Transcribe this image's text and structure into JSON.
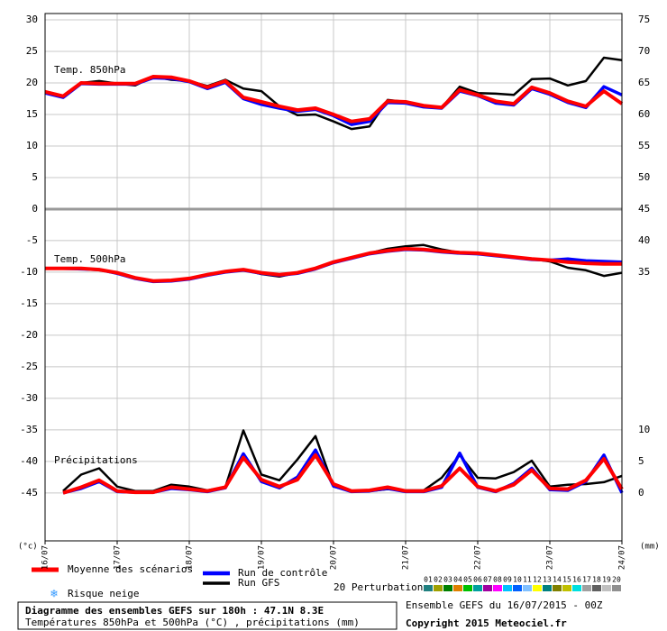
{
  "chart_data": {
    "type": "line",
    "title": "Diagramme des ensembles GEFS sur 180h : 47.1N 8.3E",
    "subtitle": "Températures 850hPa et 500hPa (°C) , précipitations (mm)",
    "run_info": "Ensemble GEFS du 16/07/2015 - 00Z",
    "copyright": "Copyright 2015 Meteociel.fr",
    "y_label": "(°c)",
    "y2_label": "(mm)",
    "annotations": [
      "Temp. 850hPa",
      "Temp. 500hPa",
      "Précipitations"
    ],
    "snow_label": "Risque neige",
    "categories": [
      "16/07",
      null,
      null,
      null,
      "17/07",
      null,
      null,
      null,
      "18/07",
      null,
      null,
      null,
      "19/07",
      null,
      null,
      null,
      "20/07",
      null,
      null,
      null,
      "21/07",
      null,
      null,
      null,
      "22/07",
      null,
      null,
      null,
      "23/07",
      null,
      null,
      null,
      "24/07"
    ],
    "ylim": [
      -52.6,
      31
    ],
    "yticks": [
      -45,
      -40,
      -35,
      -30,
      -25,
      -20,
      -15,
      -10,
      -5,
      0,
      5,
      10,
      15,
      20,
      25,
      30
    ],
    "y2lim": [
      -7.6,
      76
    ],
    "y2ticks": [
      0,
      5,
      10,
      35,
      40,
      45,
      50,
      55,
      60,
      65,
      70,
      75
    ],
    "grid": true,
    "series": [
      {
        "name": "Run GFS",
        "color": "#000000",
        "values": [
          18.6,
          17.9,
          20,
          20.3,
          19.9,
          19.6,
          21,
          20.5,
          20.3,
          19.5,
          20.5,
          19.1,
          18.7,
          16.3,
          14.9,
          15,
          13.9,
          12.7,
          13.1,
          17.3,
          17,
          16.4,
          16.1,
          19.4,
          18.4,
          18.3,
          18.1,
          20.6,
          20.7,
          19.6,
          20.3,
          24,
          23.6
        ],
        "values_500": [
          -9.4,
          -9.4,
          -9.4,
          -9.6,
          -10.1,
          -10.9,
          -11.4,
          -11.3,
          -11,
          -10.4,
          -9.9,
          -9.6,
          -10.3,
          -10.7,
          -10.1,
          -9.4,
          -8.4,
          -7.7,
          -7,
          -6.3,
          -5.9,
          -5.7,
          -6.4,
          -6.9,
          -7,
          -7.3,
          -7.6,
          -7.9,
          -8.3,
          -9.3,
          -9.7,
          -10.6,
          -10.1
        ],
        "precip": [
          null,
          0.3,
          2.9,
          3.9,
          1,
          0.3,
          0.3,
          1.3,
          1,
          0.4,
          0.9,
          9.9,
          2.9,
          2,
          5.3,
          9,
          1,
          0.3,
          0.3,
          0.6,
          0.4,
          0.4,
          2.4,
          6,
          2.4,
          2.3,
          3.3,
          5.1,
          1,
          1.3,
          1.4,
          1.7,
          2.7
        ]
      },
      {
        "name": "Run de contrôle",
        "color": "#0000ff",
        "values": [
          18.4,
          17.7,
          19.9,
          19.8,
          19.8,
          19.8,
          20.8,
          20.7,
          20.2,
          19.1,
          20.1,
          17.5,
          16.6,
          16,
          15.5,
          15.8,
          14.8,
          13.4,
          13.9,
          16.9,
          16.8,
          16.2,
          16,
          18.7,
          18,
          16.8,
          16.5,
          19.1,
          18.2,
          16.9,
          16.1,
          19.4,
          18.1
        ],
        "values_500": [
          -9.4,
          -9.4,
          -9.5,
          -9.6,
          -10.2,
          -11,
          -11.5,
          -11.4,
          -11.1,
          -10.5,
          -10,
          -9.7,
          -10.2,
          -10.5,
          -10.2,
          -9.5,
          -8.5,
          -7.8,
          -7.1,
          -6.7,
          -6.4,
          -6.5,
          -6.8,
          -7,
          -7.1,
          -7.4,
          -7.7,
          -8,
          -8.1,
          -7.9,
          -8.2,
          -8.3,
          -8.4
        ],
        "precip": [
          null,
          0,
          0.7,
          1.8,
          0.2,
          0.1,
          0.1,
          0.7,
          0.5,
          0.2,
          0.8,
          6.2,
          1.8,
          0.8,
          2.5,
          6.8,
          1.1,
          0.2,
          0.3,
          0.7,
          0.2,
          0.2,
          0.9,
          6.3,
          0.9,
          0.2,
          1.5,
          3.9,
          0.5,
          0.4,
          1.8,
          6,
          0
        ]
      },
      {
        "name": "Moyenne des scénarios",
        "color": "#ff0000",
        "values": [
          18.6,
          17.9,
          20,
          19.9,
          19.9,
          19.9,
          21,
          20.9,
          20.3,
          19.3,
          20.3,
          17.7,
          17,
          16.3,
          15.7,
          16,
          15,
          13.9,
          14.3,
          17.1,
          17,
          16.4,
          16.1,
          18.9,
          18.1,
          17.1,
          16.7,
          19.3,
          18.4,
          17.1,
          16.3,
          18.7,
          16.7
        ],
        "values_500": [
          -9.4,
          -9.4,
          -9.4,
          -9.6,
          -10.1,
          -10.9,
          -11.4,
          -11.3,
          -11,
          -10.4,
          -9.9,
          -9.6,
          -10.1,
          -10.4,
          -10.1,
          -9.4,
          -8.4,
          -7.7,
          -7,
          -6.6,
          -6.3,
          -6.4,
          -6.7,
          -6.9,
          -7,
          -7.3,
          -7.6,
          -7.9,
          -8.1,
          -8.4,
          -8.6,
          -8.7,
          -8.7
        ],
        "precip": [
          null,
          0,
          0.9,
          2,
          0.3,
          0.1,
          0.1,
          0.9,
          0.6,
          0.3,
          0.9,
          5.6,
          2.1,
          1,
          2.1,
          6,
          1.4,
          0.3,
          0.4,
          0.9,
          0.3,
          0.3,
          1.1,
          3.9,
          1,
          0.3,
          1.3,
          3.6,
          0.7,
          0.6,
          2,
          5.4,
          0.6
        ]
      }
    ],
    "perturbations": {
      "label": "20 Perturbations",
      "members": [
        {
          "name": "01",
          "color": "#208080"
        },
        {
          "name": "02",
          "color": "#a0a000"
        },
        {
          "name": "03",
          "color": "#008000"
        },
        {
          "name": "04",
          "color": "#e08000"
        },
        {
          "name": "05",
          "color": "#00c000"
        },
        {
          "name": "06",
          "color": "#00a0a0"
        },
        {
          "name": "07",
          "color": "#a000a0"
        },
        {
          "name": "08",
          "color": "#ff00ff"
        },
        {
          "name": "09",
          "color": "#00c0ff"
        },
        {
          "name": "10",
          "color": "#0060ff"
        },
        {
          "name": "11",
          "color": "#80c0ff"
        },
        {
          "name": "12",
          "color": "#ffff00"
        },
        {
          "name": "13",
          "color": "#008080"
        },
        {
          "name": "14",
          "color": "#808000"
        },
        {
          "name": "15",
          "color": "#c0c000"
        },
        {
          "name": "16",
          "color": "#00e0e0"
        },
        {
          "name": "17",
          "color": "#a0a0a0"
        },
        {
          "name": "18",
          "color": "#606060"
        },
        {
          "name": "19",
          "color": "#c0c0c0"
        },
        {
          "name": "20",
          "color": "#909090"
        }
      ]
    }
  }
}
